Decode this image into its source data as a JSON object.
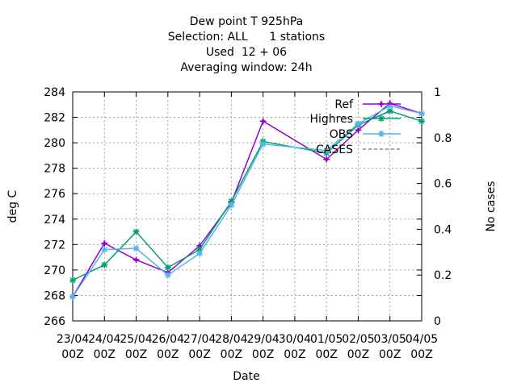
{
  "chart_data": {
    "type": "line",
    "title_lines": [
      "Dew point T 925hPa",
      "Selection: ALL      1 stations",
      "Used  12 + 06",
      "Averaging window: 24h"
    ],
    "xlabel": "Date",
    "ylabel": "deg C",
    "y2label": "No cases",
    "categories": [
      "23/04\n00Z",
      "24/04\n00Z",
      "25/04\n00Z",
      "26/04\n00Z",
      "27/04\n00Z",
      "28/04\n00Z",
      "29/04\n00Z",
      "30/04\n00Z",
      "01/05\n00Z",
      "02/05\n00Z",
      "03/05\n00Z",
      "04/05\n00Z"
    ],
    "ylim": [
      266,
      284
    ],
    "yticks": [
      266,
      268,
      270,
      272,
      274,
      276,
      278,
      280,
      282,
      284
    ],
    "y2lim": [
      0,
      1
    ],
    "y2ticks": [
      0,
      0.2,
      0.4,
      0.6,
      0.8,
      1
    ],
    "y2ticklabels": [
      "0",
      "0.2",
      "0.4",
      "0.6",
      "0.8",
      "1"
    ],
    "grid": true,
    "legend_position": "top-right",
    "series": [
      {
        "name": "Ref",
        "color": "#9400d3",
        "marker": "plus",
        "x": [
          0,
          1,
          2,
          3,
          4,
          5,
          6,
          8,
          9,
          10,
          11
        ],
        "values": [
          267.9,
          272.1,
          270.8,
          269.8,
          271.9,
          275.3,
          281.7,
          278.7,
          281.0,
          283.1,
          282.3
        ]
      },
      {
        "name": "Highres",
        "color": "#009e73",
        "marker": "star",
        "x": [
          0,
          1,
          2,
          3,
          4,
          5,
          6,
          8,
          9,
          10,
          11
        ],
        "values": [
          269.2,
          270.4,
          273.0,
          270.2,
          271.6,
          275.4,
          280.1,
          279.2,
          281.4,
          282.5,
          281.7
        ]
      },
      {
        "name": "OBS",
        "color": "#56b4e9",
        "marker": "star",
        "x": [
          0,
          1,
          2,
          3,
          4,
          5,
          6,
          8,
          9,
          10,
          11
        ],
        "values": [
          267.9,
          271.6,
          271.7,
          269.6,
          271.3,
          275.1,
          279.9,
          279.4,
          281.5,
          282.9,
          282.3
        ]
      },
      {
        "name": "CASES",
        "color": "#888888",
        "marker": "none",
        "dashed": true,
        "x": [],
        "values": []
      }
    ]
  }
}
